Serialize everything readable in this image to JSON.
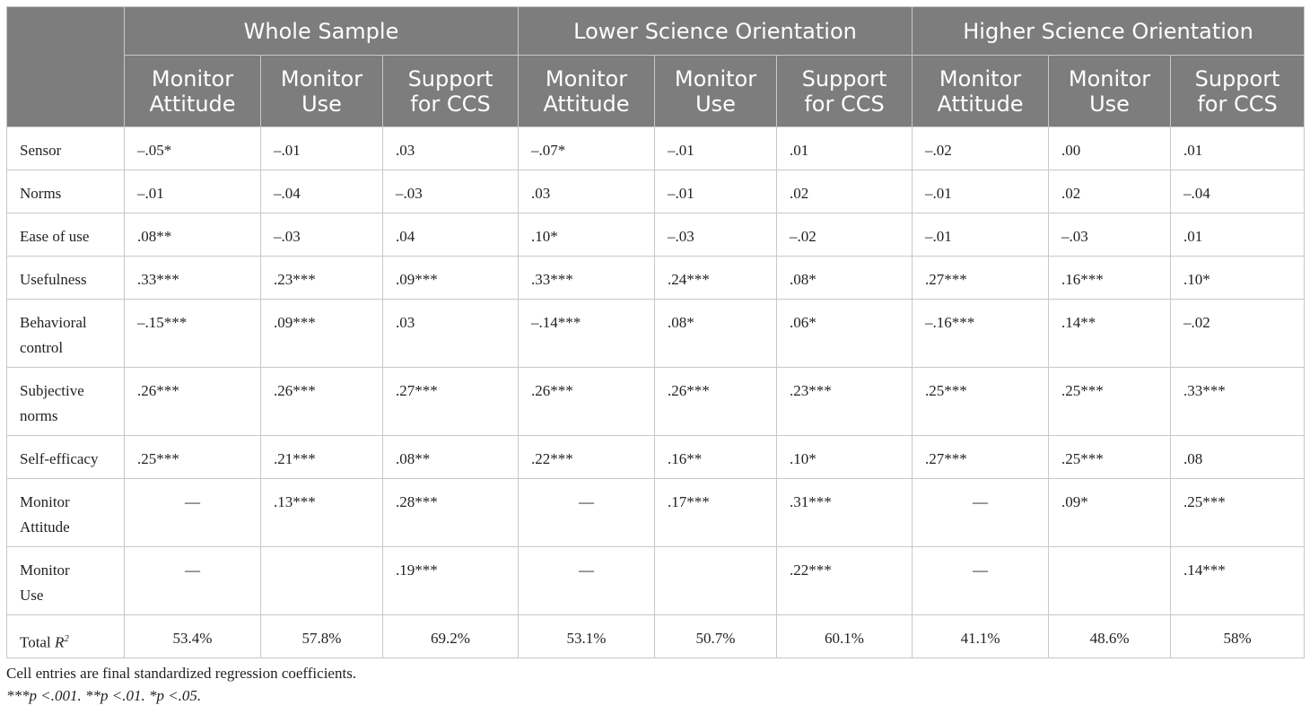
{
  "groups": [
    "Whole Sample",
    "Lower Science Orientation",
    "Higher Science Orientation"
  ],
  "subheaders": [
    [
      "Monitor",
      "Attitude"
    ],
    [
      "Monitor",
      "Use"
    ],
    [
      "Support",
      "for CCS"
    ],
    [
      "Monitor",
      "Attitude"
    ],
    [
      "Monitor",
      "Use"
    ],
    [
      "Support",
      "for CCS"
    ],
    [
      "Monitor",
      "Attitude"
    ],
    [
      "Monitor",
      "Use"
    ],
    [
      "Support",
      "for CCS"
    ]
  ],
  "rows": [
    {
      "label": [
        "Sensor"
      ],
      "values": [
        "–.05*",
        "–.01",
        ".03",
        "–.07*",
        "–.01",
        ".01",
        "–.02",
        ".00",
        ".01"
      ]
    },
    {
      "label": [
        "Norms"
      ],
      "values": [
        "–.01",
        "–.04",
        "–.03",
        ".03",
        "–.01",
        ".02",
        "–.01",
        ".02",
        "–.04"
      ]
    },
    {
      "label": [
        "Ease of use"
      ],
      "values": [
        ".08**",
        "–.03",
        ".04",
        ".10*",
        "–.03",
        "–.02",
        "–.01",
        "–.03",
        ".01"
      ]
    },
    {
      "label": [
        "Usefulness"
      ],
      "values": [
        ".33***",
        ".23***",
        ".09***",
        ".33***",
        ".24***",
        ".08*",
        ".27***",
        ".16***",
        ".10*"
      ]
    },
    {
      "label": [
        "Behavioral",
        "control"
      ],
      "values": [
        "–.15***",
        ".09***",
        ".03",
        "–.14***",
        ".08*",
        ".06*",
        "–.16***",
        ".14**",
        "–.02"
      ]
    },
    {
      "label": [
        "Subjective",
        "norms"
      ],
      "values": [
        ".26***",
        ".26***",
        ".27***",
        ".26***",
        ".26***",
        ".23***",
        ".25***",
        ".25***",
        ".33***"
      ]
    },
    {
      "label": [
        "Self-efficacy"
      ],
      "values": [
        ".25***",
        ".21***",
        ".08**",
        ".22***",
        ".16**",
        ".10*",
        ".27***",
        ".25***",
        ".08"
      ]
    },
    {
      "label": [
        "Monitor",
        "Attitude"
      ],
      "values": [
        "—",
        ".13***",
        ".28***",
        "—",
        ".17***",
        ".31***",
        "—",
        ".09*",
        ".25***"
      ]
    },
    {
      "label": [
        "Monitor",
        "Use"
      ],
      "values": [
        "—",
        "",
        ".19***",
        "—",
        "",
        ".22***",
        "—",
        "",
        ".14***"
      ]
    }
  ],
  "total": {
    "label": "Total ",
    "label_italic": "R",
    "label_sup": "2",
    "values": [
      "53.4%",
      "57.8%",
      "69.2%",
      "53.1%",
      "50.7%",
      "60.1%",
      "41.1%",
      "48.6%",
      "58%"
    ]
  },
  "notes": {
    "line1": "Cell entries are final standardized regression coefficients.",
    "line2": "***p <.001. **p <.01. *p <.05."
  },
  "colors": {
    "header_bg": "#7d7d7d",
    "header_text": "#ffffff",
    "border": "#c8c8c8"
  }
}
